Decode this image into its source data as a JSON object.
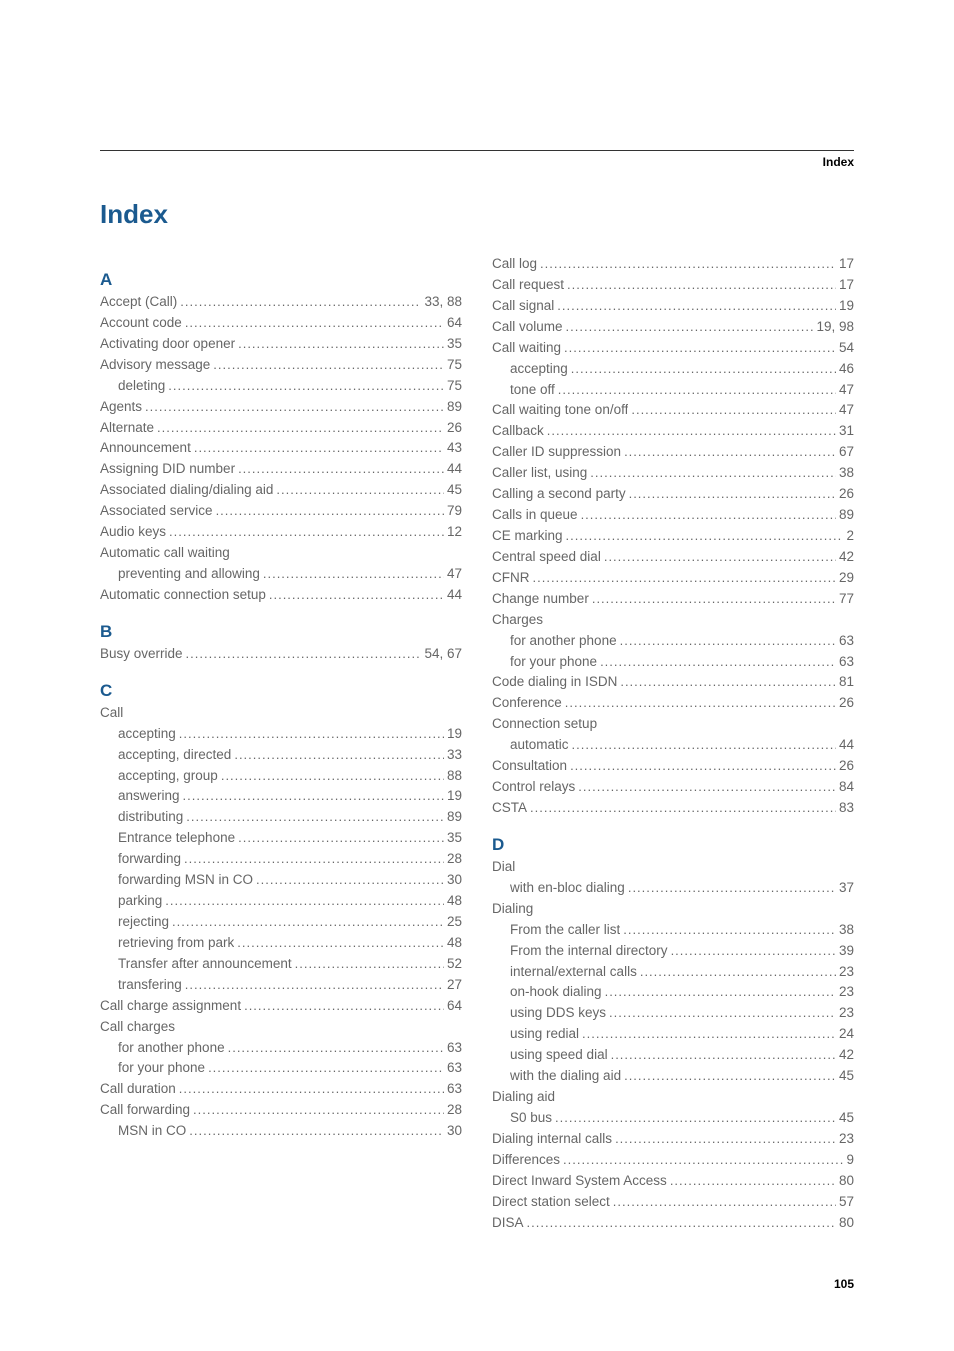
{
  "header_label": "Index",
  "title": "Index",
  "page_number": "105",
  "columns": {
    "left": [
      {
        "type": "letter",
        "text": "A"
      },
      {
        "type": "entry",
        "level": 0,
        "label": "Accept (Call)",
        "page": "33, 88"
      },
      {
        "type": "entry",
        "level": 0,
        "label": "Account code",
        "page": "64"
      },
      {
        "type": "entry",
        "level": 0,
        "label": "Activating door opener",
        "page": "35"
      },
      {
        "type": "entry",
        "level": 0,
        "label": "Advisory message",
        "page": "75"
      },
      {
        "type": "entry",
        "level": 1,
        "label": "deleting",
        "page": "75"
      },
      {
        "type": "entry",
        "level": 0,
        "label": "Agents",
        "page": "89"
      },
      {
        "type": "entry",
        "level": 0,
        "label": "Alternate",
        "page": "26"
      },
      {
        "type": "entry",
        "level": 0,
        "label": "Announcement",
        "page": "43"
      },
      {
        "type": "entry",
        "level": 0,
        "label": "Assigning DID number",
        "page": "44"
      },
      {
        "type": "entry",
        "level": 0,
        "label": "Associated dialing/dialing aid",
        "page": "45"
      },
      {
        "type": "entry",
        "level": 0,
        "label": "Associated service",
        "page": "79"
      },
      {
        "type": "entry",
        "level": 0,
        "label": "Audio keys",
        "page": "12"
      },
      {
        "type": "heading",
        "level": 0,
        "label": "Automatic call waiting"
      },
      {
        "type": "entry",
        "level": 1,
        "label": "preventing and allowing",
        "page": "47"
      },
      {
        "type": "entry",
        "level": 0,
        "label": "Automatic connection setup",
        "page": "44"
      },
      {
        "type": "letter",
        "text": "B"
      },
      {
        "type": "entry",
        "level": 0,
        "label": "Busy override",
        "page": "54, 67"
      },
      {
        "type": "letter",
        "text": "C"
      },
      {
        "type": "heading",
        "level": 0,
        "label": "Call"
      },
      {
        "type": "entry",
        "level": 1,
        "label": "accepting",
        "page": "19"
      },
      {
        "type": "entry",
        "level": 1,
        "label": "accepting, directed",
        "page": "33"
      },
      {
        "type": "entry",
        "level": 1,
        "label": "accepting, group",
        "page": "88"
      },
      {
        "type": "entry",
        "level": 1,
        "label": "answering",
        "page": "19"
      },
      {
        "type": "entry",
        "level": 1,
        "label": "distributing",
        "page": "89"
      },
      {
        "type": "entry",
        "level": 1,
        "label": "Entrance telephone",
        "page": "35"
      },
      {
        "type": "entry",
        "level": 1,
        "label": "forwarding",
        "page": "28"
      },
      {
        "type": "entry",
        "level": 1,
        "label": "forwarding MSN in CO",
        "page": "30"
      },
      {
        "type": "entry",
        "level": 1,
        "label": "parking",
        "page": "48"
      },
      {
        "type": "entry",
        "level": 1,
        "label": "rejecting",
        "page": "25"
      },
      {
        "type": "entry",
        "level": 1,
        "label": "retrieving from park",
        "page": "48"
      },
      {
        "type": "entry",
        "level": 1,
        "label": "Transfer after announcement",
        "page": "52"
      },
      {
        "type": "entry",
        "level": 1,
        "label": "transfering",
        "page": "27"
      },
      {
        "type": "entry",
        "level": 0,
        "label": "Call charge assignment",
        "page": "64"
      },
      {
        "type": "heading",
        "level": 0,
        "label": "Call charges"
      },
      {
        "type": "entry",
        "level": 1,
        "label": "for another phone",
        "page": "63"
      },
      {
        "type": "entry",
        "level": 1,
        "label": "for your phone",
        "page": "63"
      },
      {
        "type": "entry",
        "level": 0,
        "label": "Call duration",
        "page": "63"
      },
      {
        "type": "entry",
        "level": 0,
        "label": "Call forwarding",
        "page": "28"
      },
      {
        "type": "entry",
        "level": 1,
        "label": "MSN in CO",
        "page": "30"
      }
    ],
    "right": [
      {
        "type": "entry",
        "level": 0,
        "label": "Call log",
        "page": "17"
      },
      {
        "type": "entry",
        "level": 0,
        "label": "Call request",
        "page": "17"
      },
      {
        "type": "entry",
        "level": 0,
        "label": "Call signal",
        "page": "19"
      },
      {
        "type": "entry",
        "level": 0,
        "label": "Call volume",
        "page": "19, 98"
      },
      {
        "type": "entry",
        "level": 0,
        "label": "Call waiting",
        "page": "54"
      },
      {
        "type": "entry",
        "level": 1,
        "label": "accepting",
        "page": "46"
      },
      {
        "type": "entry",
        "level": 1,
        "label": "tone off",
        "page": "47"
      },
      {
        "type": "entry",
        "level": 0,
        "label": "Call waiting tone on/off",
        "page": "47"
      },
      {
        "type": "entry",
        "level": 0,
        "label": "Callback",
        "page": "31"
      },
      {
        "type": "entry",
        "level": 0,
        "label": "Caller ID suppression",
        "page": "67"
      },
      {
        "type": "entry",
        "level": 0,
        "label": "Caller list, using",
        "page": "38"
      },
      {
        "type": "entry",
        "level": 0,
        "label": "Calling a second party",
        "page": "26"
      },
      {
        "type": "entry",
        "level": 0,
        "label": "Calls in queue",
        "page": "89"
      },
      {
        "type": "entry",
        "level": 0,
        "label": "CE marking",
        "page": "2"
      },
      {
        "type": "entry",
        "level": 0,
        "label": "Central speed dial",
        "page": "42"
      },
      {
        "type": "entry",
        "level": 0,
        "label": "CFNR",
        "page": "29"
      },
      {
        "type": "entry",
        "level": 0,
        "label": "Change number",
        "page": "77"
      },
      {
        "type": "heading",
        "level": 0,
        "label": "Charges"
      },
      {
        "type": "entry",
        "level": 1,
        "label": "for another phone",
        "page": "63"
      },
      {
        "type": "entry",
        "level": 1,
        "label": "for your phone",
        "page": "63"
      },
      {
        "type": "entry",
        "level": 0,
        "label": "Code dialing in ISDN",
        "page": "81"
      },
      {
        "type": "entry",
        "level": 0,
        "label": "Conference",
        "page": "26"
      },
      {
        "type": "heading",
        "level": 0,
        "label": "Connection setup"
      },
      {
        "type": "entry",
        "level": 1,
        "label": "automatic",
        "page": "44"
      },
      {
        "type": "entry",
        "level": 0,
        "label": "Consultation",
        "page": "26"
      },
      {
        "type": "entry",
        "level": 0,
        "label": "Control relays",
        "page": "84"
      },
      {
        "type": "entry",
        "level": 0,
        "label": "CSTA",
        "page": "83"
      },
      {
        "type": "letter",
        "text": "D"
      },
      {
        "type": "heading",
        "level": 0,
        "label": "Dial"
      },
      {
        "type": "entry",
        "level": 1,
        "label": "with en-bloc dialing",
        "page": "37"
      },
      {
        "type": "heading",
        "level": 0,
        "label": "Dialing"
      },
      {
        "type": "entry",
        "level": 1,
        "label": "From the caller list",
        "page": "38"
      },
      {
        "type": "entry",
        "level": 1,
        "label": "From the internal directory",
        "page": "39"
      },
      {
        "type": "entry",
        "level": 1,
        "label": "internal/external calls",
        "page": "23"
      },
      {
        "type": "entry",
        "level": 1,
        "label": "on-hook dialing",
        "page": "23"
      },
      {
        "type": "entry",
        "level": 1,
        "label": "using DDS keys",
        "page": "23"
      },
      {
        "type": "entry",
        "level": 1,
        "label": "using redial",
        "page": "24"
      },
      {
        "type": "entry",
        "level": 1,
        "label": "using speed dial",
        "page": "42"
      },
      {
        "type": "entry",
        "level": 1,
        "label": "with the dialing aid",
        "page": "45"
      },
      {
        "type": "heading",
        "level": 0,
        "label": "Dialing aid"
      },
      {
        "type": "entry",
        "level": 1,
        "label": "S0 bus",
        "page": "45"
      },
      {
        "type": "entry",
        "level": 0,
        "label": "Dialing internal calls",
        "page": "23"
      },
      {
        "type": "entry",
        "level": 0,
        "label": "Differences",
        "page": "9"
      },
      {
        "type": "entry",
        "level": 0,
        "label": "Direct Inward System Access",
        "page": "80"
      },
      {
        "type": "entry",
        "level": 0,
        "label": "Direct station select",
        "page": "57"
      },
      {
        "type": "entry",
        "level": 0,
        "label": "DISA",
        "page": "80"
      }
    ]
  }
}
